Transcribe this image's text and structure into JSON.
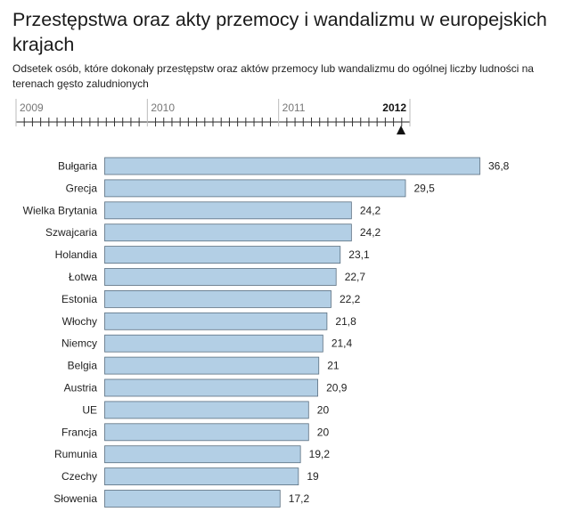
{
  "title": "Przestępstwa oraz akty przemocy i wandalizmu w europejskich krajach",
  "subtitle": "Odsetek osób, które dokonały przestępstw oraz aktów przemocy lub wandalizmu do ogólnej liczby ludności na terenach gęsto zaludnionych",
  "timeline": {
    "years": [
      "2009",
      "2010",
      "2011",
      "2012"
    ],
    "selected": "2012"
  },
  "colors": {
    "bar_fill": "#b3cfe5",
    "bar_stroke": "#5a6f80"
  },
  "chart_data": {
    "type": "bar",
    "orientation": "horizontal",
    "categories": [
      "Bułgaria",
      "Grecja",
      "Wielka Brytania",
      "Szwajcaria",
      "Holandia",
      "Łotwa",
      "Estonia",
      "Włochy",
      "Niemcy",
      "Belgia",
      "Austria",
      "UE",
      "Francja",
      "Rumunia",
      "Czechy",
      "Słowenia"
    ],
    "values": [
      36.8,
      29.5,
      24.2,
      24.2,
      23.1,
      22.7,
      22.2,
      21.8,
      21.4,
      21,
      20.9,
      20,
      20,
      19.2,
      19,
      17.2
    ],
    "value_labels": [
      "36,8",
      "29,5",
      "24,2",
      "24,2",
      "23,1",
      "22,7",
      "22,2",
      "21,8",
      "21,4",
      "21",
      "20,9",
      "20",
      "20",
      "19,2",
      "19",
      "17,2"
    ],
    "grid": false,
    "legend": "none"
  }
}
